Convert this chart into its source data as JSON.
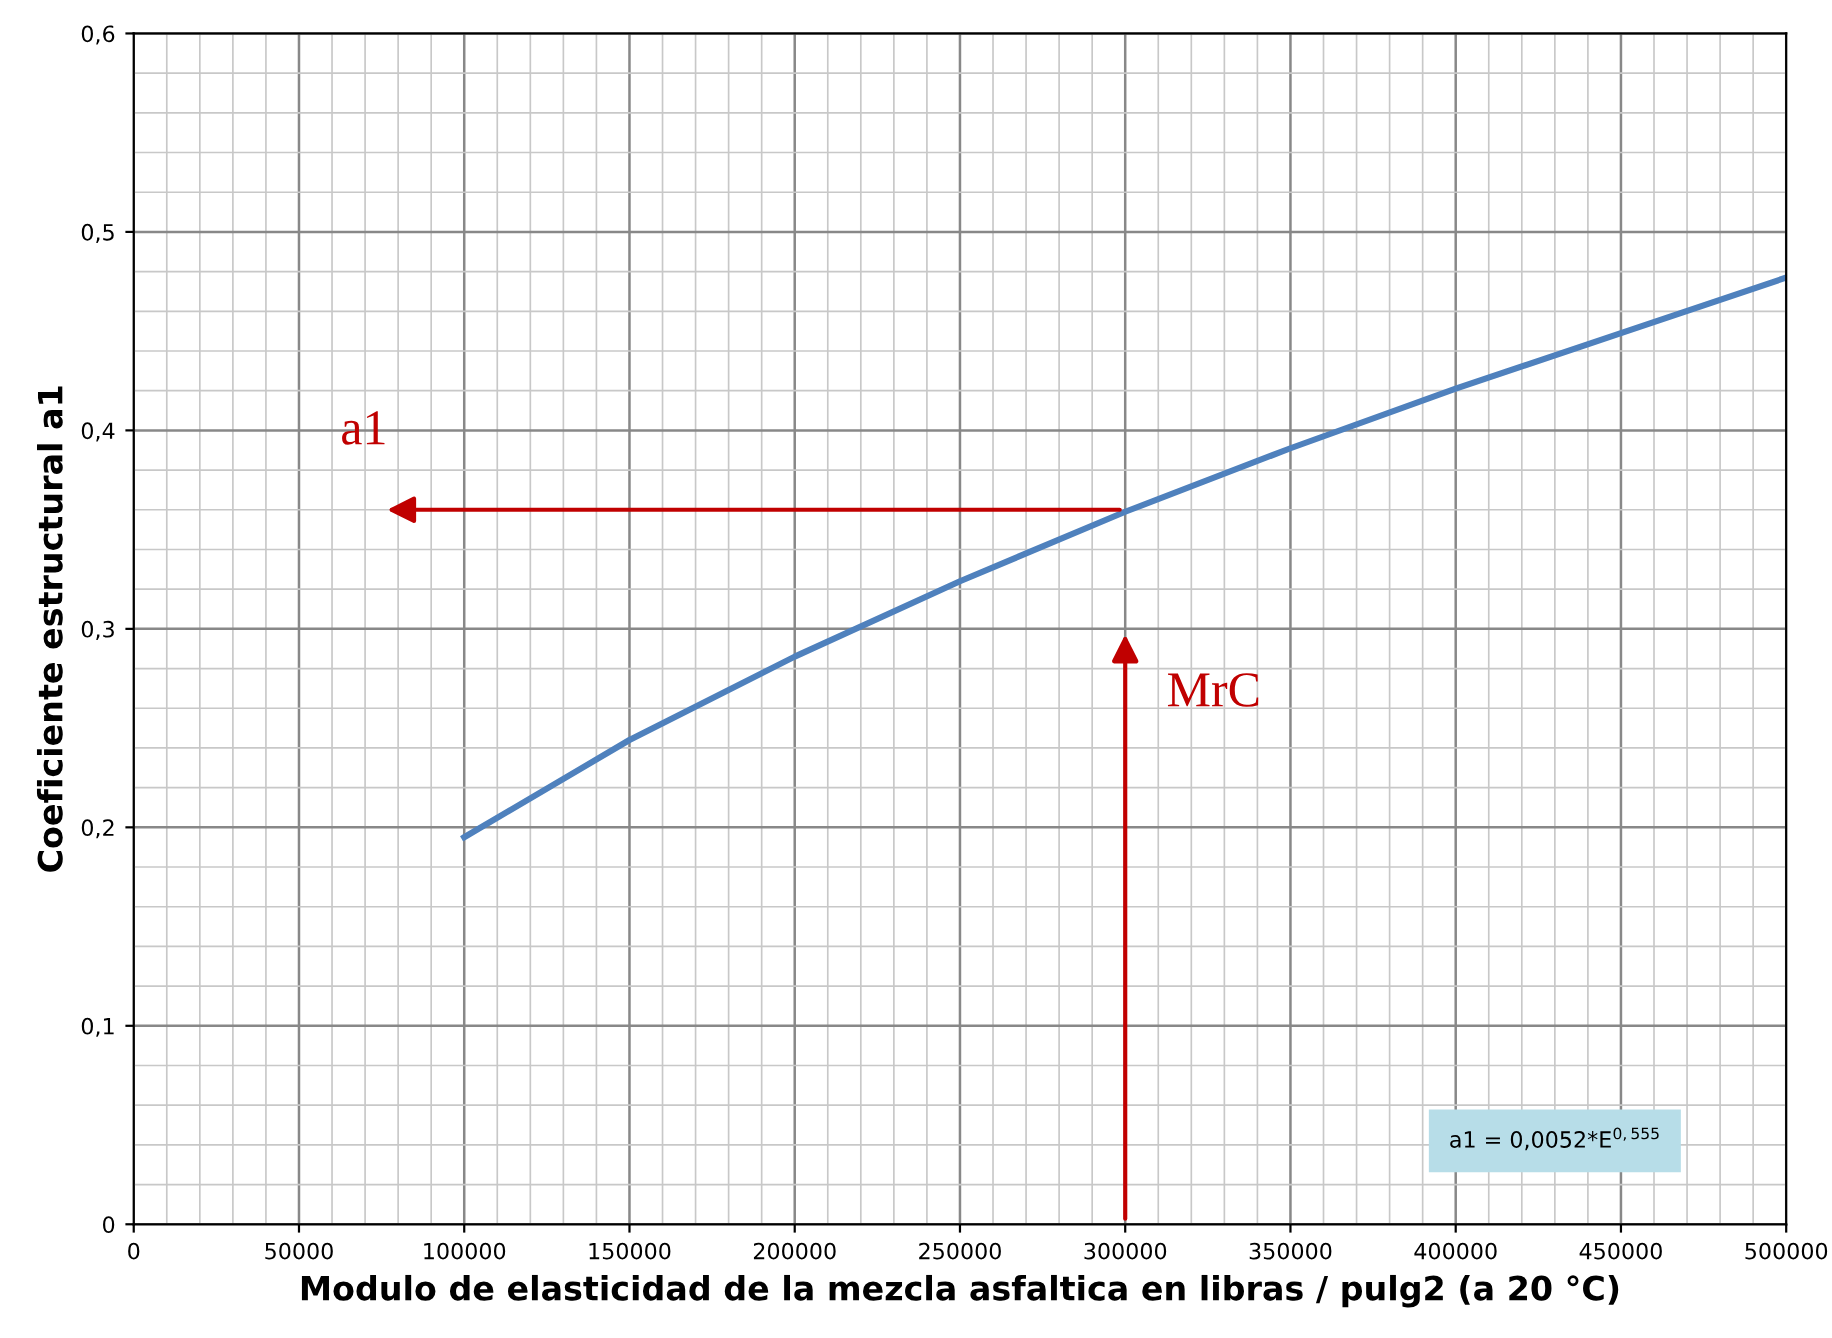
{
  "chart_data": {
    "type": "line",
    "x": [
      100000,
      150000,
      200000,
      250000,
      300000,
      350000,
      400000,
      450000,
      500000
    ],
    "series": [
      {
        "color": "#4f81bd",
        "values": [
          0.195,
          0.244,
          0.286,
          0.324,
          0.359,
          0.391,
          0.421,
          0.449,
          0.477
        ]
      }
    ],
    "xlabel": "Modulo de elasticidad de la mezcla asfaltica en libras / pulg2 (a 20 °C)",
    "ylabel": "Coeficiente estructural a1",
    "xlim": [
      0,
      500000
    ],
    "xticks": [
      0,
      50000,
      100000,
      150000,
      200000,
      250000,
      300000,
      350000,
      400000,
      450000,
      500000
    ],
    "ylim": [
      0,
      0.6
    ],
    "yticks": [
      0,
      {
        "value": 0.1,
        "label": "0,1"
      },
      {
        "value": 0.2,
        "label": "0,2"
      },
      {
        "value": 0.3,
        "label": "0,3"
      },
      {
        "value": 0.4,
        "label": "0,4"
      },
      {
        "value": 0.5,
        "label": "0,5"
      },
      {
        "value": 0.6,
        "label": "0,6"
      }
    ],
    "grid": true,
    "legend": false,
    "annotations": [
      "MrC",
      "a1",
      "a1 = 0,0052*E$^{0,555}$"
    ]
  }
}
